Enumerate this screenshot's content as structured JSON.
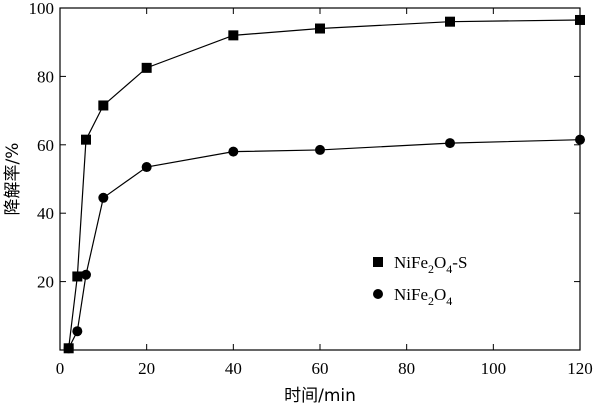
{
  "chart_data": {
    "type": "line",
    "xlabel": "时间/min",
    "ylabel": "降解率/%",
    "xlim": [
      0,
      120
    ],
    "ylim": [
      0,
      100
    ],
    "xticks": [
      0,
      20,
      40,
      60,
      80,
      100,
      120
    ],
    "yticks": [
      20,
      40,
      60,
      80,
      100
    ],
    "grid": false,
    "legend_position": "right-middle",
    "series": [
      {
        "name": "NiFe2O4-S",
        "legend_base": "NiFe",
        "legend_sub1": "2",
        "legend_mid": "O",
        "legend_sub2": "4",
        "legend_suffix": "-S",
        "marker": "square",
        "x": [
          2,
          4,
          6,
          10,
          20,
          40,
          60,
          90,
          120
        ],
        "y": [
          0.5,
          21.5,
          61.5,
          71.5,
          82.5,
          92,
          94,
          96,
          96.5
        ]
      },
      {
        "name": "NiFe2O4",
        "legend_base": "NiFe",
        "legend_sub1": "2",
        "legend_mid": "O",
        "legend_sub2": "4",
        "legend_suffix": "",
        "marker": "circle",
        "x": [
          2,
          4,
          6,
          10,
          20,
          40,
          60,
          90,
          120
        ],
        "y": [
          0.5,
          5.5,
          22,
          44.5,
          53.5,
          58,
          58.5,
          60.5,
          61.5
        ]
      }
    ]
  }
}
